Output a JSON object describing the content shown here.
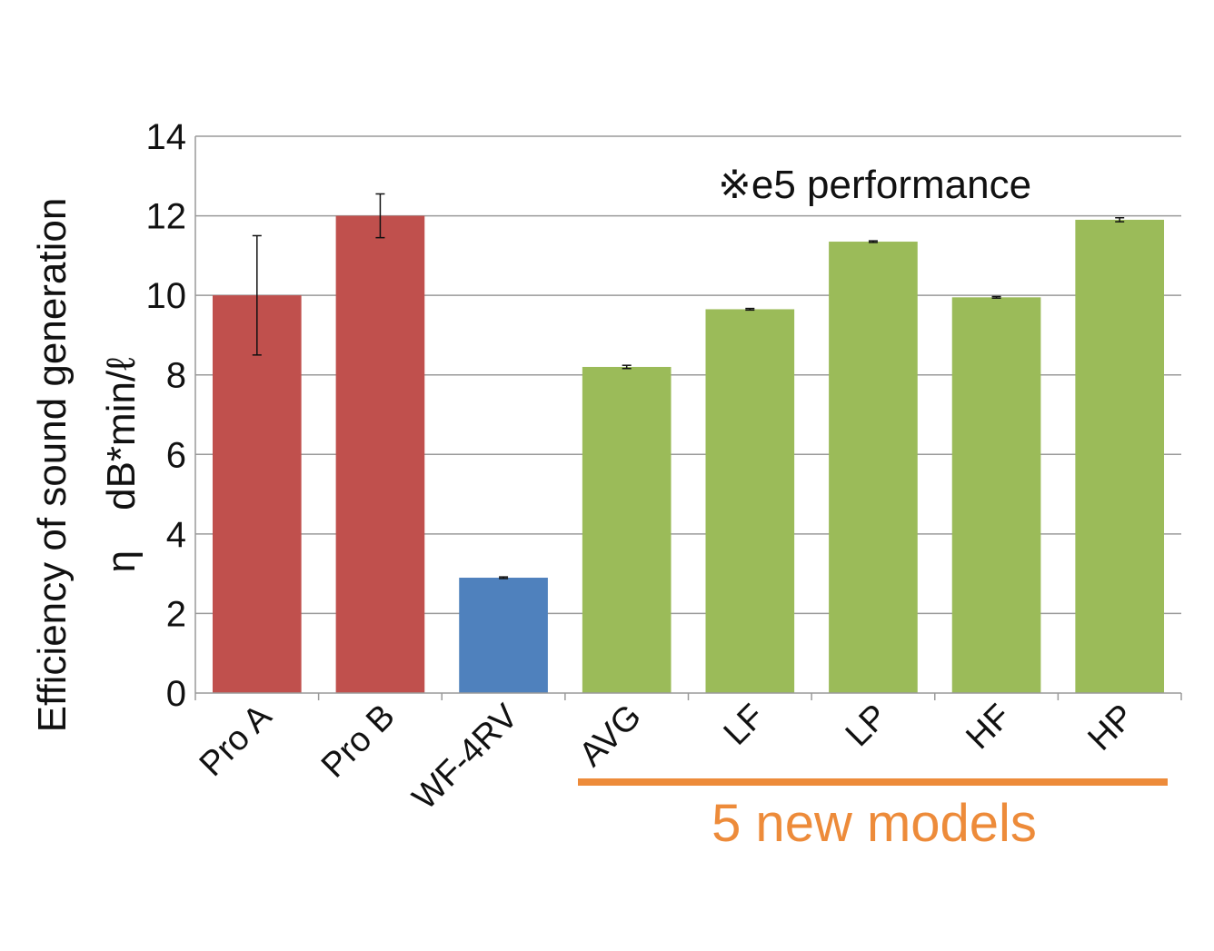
{
  "chart_data": {
    "type": "bar",
    "title": "",
    "xlabel": "",
    "ylabel": "Efficiency of sound generation",
    "ylabel_line2": "η　dB*min/ℓ",
    "ylim": [
      0,
      14
    ],
    "yticks": [
      0,
      2,
      4,
      6,
      8,
      10,
      12,
      14
    ],
    "grid": true,
    "categories": [
      "Pro A",
      "Pro B",
      "WF-4RV",
      "AVG",
      "LF",
      "LP",
      "HF",
      "HP"
    ],
    "values": [
      10.0,
      12.0,
      2.9,
      8.2,
      9.65,
      11.35,
      9.95,
      11.9
    ],
    "errors": [
      1.5,
      0.55,
      0.02,
      0.04,
      0.02,
      0.02,
      0.02,
      0.05
    ],
    "bar_colors": [
      "#C0504D",
      "#C0504D",
      "#4F81BD",
      "#9BBB59",
      "#9BBB59",
      "#9BBB59",
      "#9BBB59",
      "#9BBB59"
    ],
    "annotation": "※e5 performance",
    "group_label": "5 new models",
    "group_color": "#ED8B3A"
  }
}
